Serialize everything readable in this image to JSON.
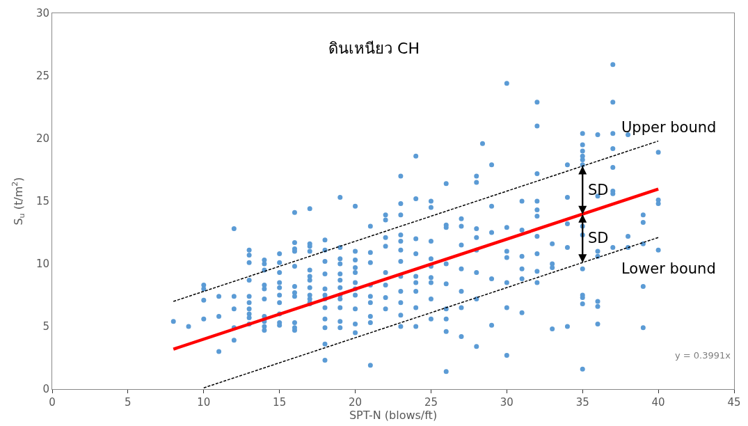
{
  "chart_data": {
    "type": "scatter",
    "title": "ดินเหนียว CH",
    "xlabel": "SPT-N (blows/ft)",
    "ylabel": "S$_{u}$ (t/m$^{2}$)",
    "xlim": [
      0,
      45
    ],
    "xticks": [
      0,
      5,
      10,
      15,
      20,
      25,
      30,
      35,
      40,
      45
    ],
    "ylim": [
      0,
      30
    ],
    "yticks": [
      0,
      5,
      10,
      15,
      20,
      25,
      30
    ],
    "marker": "circle",
    "series": [
      {
        "color": "#5b9bd5",
        "x": [
          8,
          9,
          10,
          10,
          10,
          10,
          11,
          11,
          11,
          12,
          12,
          12,
          12,
          12,
          13,
          13,
          13,
          13,
          13,
          13,
          13,
          13,
          13,
          13,
          14,
          14,
          14,
          14,
          14,
          14,
          14,
          14,
          14,
          14,
          15,
          15,
          15,
          15,
          15,
          15,
          15,
          15,
          15,
          15,
          16,
          16,
          16,
          16,
          16,
          16,
          16,
          16,
          16,
          16,
          16,
          17,
          17,
          17,
          17,
          17,
          17,
          17,
          17,
          17,
          17,
          17,
          17,
          18,
          18,
          18,
          18,
          18,
          18,
          18,
          18,
          18,
          18,
          18,
          18,
          19,
          19,
          19,
          19,
          19,
          19,
          19,
          19,
          19,
          19,
          19,
          19,
          20,
          20,
          20,
          20,
          20,
          20,
          20,
          20,
          20,
          20,
          20,
          21,
          21,
          21,
          21,
          21,
          21,
          21,
          21,
          21,
          22,
          22,
          22,
          22,
          22,
          22,
          22,
          22,
          23,
          23,
          23,
          23,
          23,
          23,
          23,
          23,
          23,
          23,
          23,
          23,
          24,
          24,
          24,
          24,
          24,
          24,
          24,
          24,
          24,
          25,
          25,
          25,
          25,
          25,
          25,
          25,
          25,
          25,
          26,
          26,
          26,
          26,
          26,
          26,
          26,
          26,
          26,
          27,
          27,
          27,
          27,
          27,
          27,
          27,
          28,
          28,
          28,
          28,
          28,
          28,
          28,
          28,
          28.4,
          29,
          29,
          29,
          29,
          29,
          30,
          30,
          30,
          30,
          30,
          30,
          30,
          31,
          31,
          31,
          31,
          31,
          31,
          32,
          32,
          32,
          32,
          32,
          32,
          32,
          32,
          32,
          32,
          33,
          33,
          33,
          33,
          34,
          34,
          34,
          34,
          34,
          35,
          35,
          35,
          35,
          35,
          35,
          35,
          35,
          35,
          35,
          35,
          35,
          35,
          36,
          36,
          36,
          36,
          36,
          36,
          36,
          37,
          37,
          37,
          37,
          37,
          37,
          37,
          37,
          38,
          38,
          38,
          39,
          39,
          39,
          39,
          39,
          40,
          40,
          40,
          40
        ],
        "values": [
          5.4,
          5.0,
          8.3,
          8.0,
          7.1,
          5.6,
          7.4,
          5.8,
          3.0,
          12.8,
          7.4,
          6.4,
          4.9,
          3.9,
          11.1,
          10.7,
          10.1,
          8.7,
          7.4,
          6.9,
          6.4,
          6.0,
          5.7,
          5.2,
          10.3,
          10.0,
          9.5,
          8.3,
          8.0,
          7.2,
          5.8,
          5.4,
          5.0,
          4.7,
          10.8,
          10.1,
          9.3,
          8.5,
          8.1,
          7.5,
          6.9,
          6.0,
          5.3,
          5.1,
          14.1,
          11.7,
          11.2,
          11.0,
          9.8,
          8.2,
          7.7,
          7.4,
          5.3,
          4.9,
          4.7,
          14.4,
          11.6,
          11.4,
          11.0,
          9.5,
          9.0,
          8.7,
          8.1,
          7.5,
          7.2,
          6.9,
          6.8,
          11.9,
          11.1,
          10.2,
          9.2,
          8.0,
          7.5,
          7.2,
          6.5,
          5.6,
          4.9,
          3.6,
          2.3,
          15.3,
          11.3,
          10.4,
          10.0,
          9.2,
          8.7,
          8.1,
          7.5,
          7.2,
          6.5,
          5.4,
          4.9,
          14.6,
          11.0,
          10.3,
          9.7,
          9.3,
          8.5,
          8.0,
          7.5,
          6.4,
          5.2,
          4.5,
          13.0,
          10.9,
          10.1,
          8.3,
          7.4,
          6.9,
          5.8,
          5.3,
          1.9,
          13.9,
          13.5,
          12.1,
          11.4,
          9.3,
          8.3,
          7.3,
          6.4,
          17.0,
          14.8,
          13.9,
          12.3,
          11.8,
          11.1,
          10.2,
          9.0,
          7.8,
          6.9,
          5.9,
          5.0,
          18.6,
          15.2,
          12.0,
          10.8,
          9.0,
          8.5,
          7.8,
          6.5,
          5.0,
          15.0,
          14.5,
          11.8,
          10.4,
          9.8,
          8.9,
          8.5,
          7.2,
          5.6,
          16.4,
          13.1,
          12.9,
          10.0,
          8.4,
          6.4,
          5.6,
          4.6,
          1.4,
          13.6,
          13.0,
          11.5,
          9.6,
          7.8,
          6.5,
          4.2,
          17.0,
          16.5,
          12.8,
          12.1,
          11.1,
          9.3,
          7.2,
          3.4,
          19.6,
          17.9,
          14.6,
          12.5,
          8.8,
          5.1,
          24.4,
          12.9,
          11.0,
          10.5,
          8.5,
          6.5,
          2.7,
          15.0,
          12.7,
          10.6,
          9.6,
          8.8,
          6.1,
          22.9,
          21.0,
          17.2,
          15.0,
          14.3,
          13.8,
          12.2,
          10.8,
          9.4,
          8.5,
          11.6,
          10.0,
          9.7,
          4.8,
          17.9,
          15.3,
          13.2,
          11.3,
          5.0,
          20.4,
          19.5,
          19.0,
          18.6,
          18.3,
          17.9,
          13.0,
          12.3,
          9.6,
          7.5,
          7.3,
          6.8,
          1.6,
          20.3,
          15.4,
          11.0,
          10.6,
          7.0,
          6.6,
          5.2,
          25.9,
          22.9,
          20.4,
          19.2,
          17.7,
          15.8,
          15.6,
          11.3,
          20.3,
          12.2,
          11.3,
          13.9,
          13.3,
          11.6,
          8.2,
          4.9,
          18.9,
          15.1,
          14.8,
          11.1
        ]
      },
      {
        "type": "line",
        "color": "#ff0000",
        "x": [
          8,
          40
        ],
        "values": [
          3.19,
          15.96
        ],
        "line_style": "solid",
        "marker": "none"
      },
      {
        "type": "line",
        "color": "#000000",
        "x": [
          8,
          40
        ],
        "values": [
          7.0,
          19.8
        ],
        "line_style": "dashed",
        "marker": "none"
      },
      {
        "type": "line",
        "color": "#000000",
        "x": [
          10,
          40
        ],
        "values": [
          0.1,
          12.1
        ],
        "line_style": "dashed",
        "marker": "none"
      }
    ],
    "annotations": [
      "Upper bound",
      "Lower bound",
      {
        "text": "SD",
        "x": 35,
        "y": 17.8
      },
      {
        "text": "SD",
        "x": 35,
        "y": 10.1
      },
      "y = 0.3991x"
    ]
  }
}
